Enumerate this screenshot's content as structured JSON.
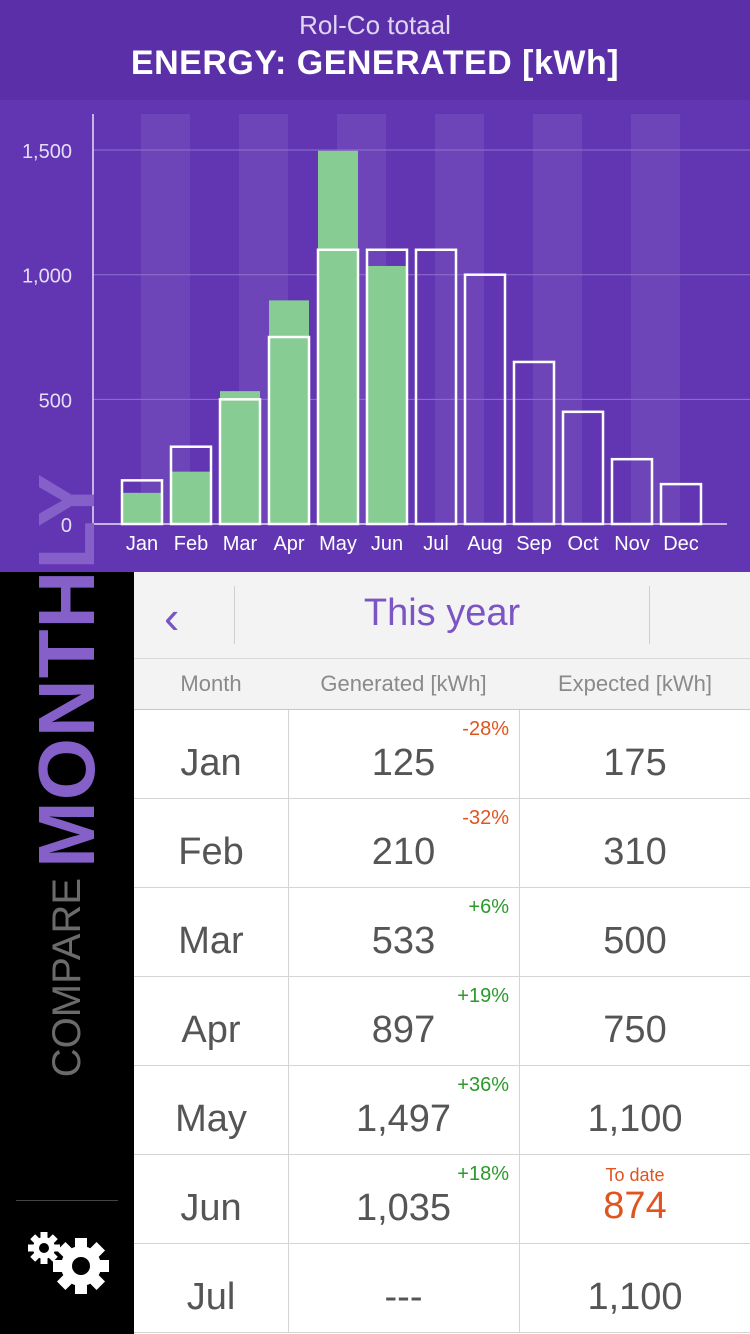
{
  "header": {
    "subtitle": "Rol-Co totaal",
    "title": "ENERGY: GENERATED [kWh]"
  },
  "chart_data": {
    "type": "bar",
    "categories": [
      "Jan",
      "Feb",
      "Mar",
      "Apr",
      "May",
      "Jun",
      "Jul",
      "Aug",
      "Sep",
      "Oct",
      "Nov",
      "Dec"
    ],
    "y_ticks": [
      "0",
      "500",
      "1,000",
      "1,500"
    ],
    "ylim": [
      0,
      1650
    ],
    "series": [
      {
        "values": [
          125,
          210,
          533,
          897,
          1497,
          1035,
          null,
          null,
          null,
          null,
          null,
          null
        ]
      },
      {
        "values": [
          175,
          310,
          500,
          750,
          1100,
          1100,
          1100,
          1000,
          650,
          450,
          260,
          160
        ]
      }
    ],
    "colors": {
      "generated": "#86cc93",
      "expected_outline": "#ffffff",
      "background": "#6236b3",
      "band": "#6e45b9"
    }
  },
  "sidebar": {
    "compare_label": "COMPARE",
    "mode_label": "MONTHLY",
    "settings_icon": "gears-icon"
  },
  "nav": {
    "back_icon": "chevron-left-icon",
    "period_label": "This year"
  },
  "table": {
    "headers": {
      "month": "Month",
      "generated": "Generated [kWh]",
      "expected": "Expected [kWh]"
    },
    "rows": [
      {
        "month": "Jan",
        "generated": "125",
        "change": "-28%",
        "change_color": "#e0541f",
        "expected": "175",
        "expected_label": ""
      },
      {
        "month": "Feb",
        "generated": "210",
        "change": "-32%",
        "change_color": "#e0541f",
        "expected": "310",
        "expected_label": ""
      },
      {
        "month": "Mar",
        "generated": "533",
        "change": "+6%",
        "change_color": "#2a9a2a",
        "expected": "500",
        "expected_label": ""
      },
      {
        "month": "Apr",
        "generated": "897",
        "change": "+19%",
        "change_color": "#2a9a2a",
        "expected": "750",
        "expected_label": ""
      },
      {
        "month": "May",
        "generated": "1,497",
        "change": "+36%",
        "change_color": "#2a9a2a",
        "expected": "1,100",
        "expected_label": ""
      },
      {
        "month": "Jun",
        "generated": "1,035",
        "change": "+18%",
        "change_color": "#2a9a2a",
        "expected": "874",
        "expected_label": "To date"
      },
      {
        "month": "Jul",
        "generated": "---",
        "change": "",
        "change_color": "#2a9a2a",
        "expected": "1,100",
        "expected_label": ""
      }
    ]
  }
}
